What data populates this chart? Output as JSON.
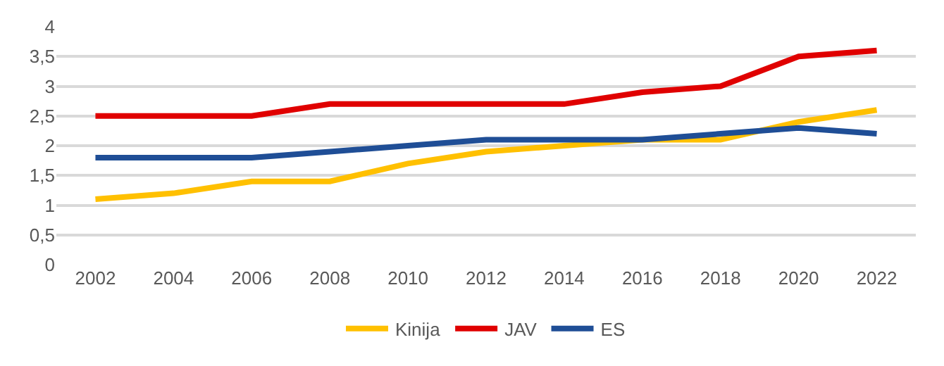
{
  "chart_data": {
    "type": "line",
    "categories": [
      "2002",
      "2004",
      "2006",
      "2008",
      "2010",
      "2012",
      "2014",
      "2016",
      "2018",
      "2020",
      "2022"
    ],
    "series": [
      {
        "name": "Kinija",
        "color": "#ffc000",
        "values": [
          1.1,
          1.2,
          1.4,
          1.4,
          1.7,
          1.9,
          2.0,
          2.1,
          2.1,
          2.4,
          2.6
        ]
      },
      {
        "name": "JAV",
        "color": "#e00000",
        "values": [
          2.5,
          2.5,
          2.5,
          2.7,
          2.7,
          2.7,
          2.7,
          2.9,
          3.0,
          3.5,
          3.6
        ]
      },
      {
        "name": "ES",
        "color": "#1f4e96",
        "values": [
          1.8,
          1.8,
          1.8,
          1.9,
          2.0,
          2.1,
          2.1,
          2.1,
          2.2,
          2.3,
          2.2
        ]
      }
    ],
    "ylim": [
      0,
      4
    ],
    "yticks": [
      0,
      {
        "value": 0.5,
        "label": "0,5"
      },
      1,
      {
        "value": 1.5,
        "label": "1,5"
      },
      2,
      {
        "value": 2.5,
        "label": "2,5"
      },
      3,
      {
        "value": 3.5,
        "label": "3,5"
      },
      4
    ],
    "grid": "y",
    "legend": "bottom",
    "marker": "none",
    "line_style": "solid"
  }
}
